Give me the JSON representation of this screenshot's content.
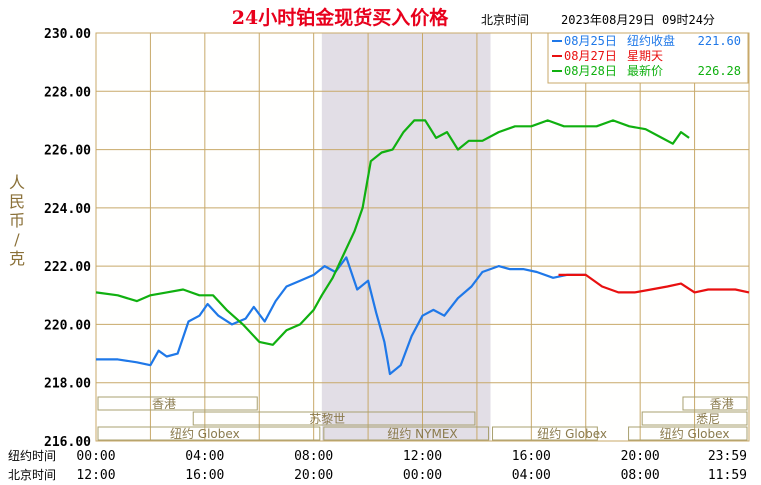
{
  "header": {
    "title": "24小时铂金现货买入价格",
    "location": "北京时间",
    "datetime": "2023年08月29日 09时24分"
  },
  "colors": {
    "background": "#fffffe",
    "grid": "#c8a96a",
    "axis_text": "#000000",
    "title": "#e8001c",
    "ylabel": "#8a7038",
    "series_aug25": "#1f78e8",
    "series_aug27": "#e81010",
    "series_aug28": "#10b010",
    "band_fill": "#e2dee6",
    "band_edge": "#d8d0c2",
    "session_box": "#a8a070",
    "session_text": "#8a7a4c",
    "legend_text_blue": "#1f78e8",
    "legend_text_red": "#e81010",
    "legend_text_green": "#10b010"
  },
  "y_axis_label": [
    "人",
    "民",
    "币",
    "/",
    "克"
  ],
  "x_axis": {
    "rows": [
      {
        "label": "纽约时间",
        "ticks": [
          "00:00",
          "04:00",
          "08:00",
          "12:00",
          "16:00",
          "20:00",
          "23:59"
        ]
      },
      {
        "label": "北京时间",
        "ticks": [
          "12:00",
          "16:00",
          "20:00",
          "00:00",
          "04:00",
          "08:00",
          "11:59"
        ]
      }
    ]
  },
  "legend": [
    {
      "date": "08月25日",
      "desc": "纽约收盘",
      "value": "221.60",
      "color_key": "series_aug25"
    },
    {
      "date": "08月27日",
      "desc": "星期天",
      "value": "",
      "color_key": "series_aug27"
    },
    {
      "date": "08月28日",
      "desc": "最新价",
      "value": "226.28",
      "color_key": "series_aug28"
    }
  ],
  "sessions": [
    {
      "name": "香港",
      "row": 1,
      "from": 0,
      "to": 6,
      "label_at": 2.5
    },
    {
      "name": "苏黎世",
      "row": 2,
      "from": 3.5,
      "to": 14,
      "label_at": 8.5
    },
    {
      "name": "纽约 Globex",
      "row": 3,
      "from": 0,
      "to": 8.3,
      "label_at": 4
    },
    {
      "name": "纽约 NYMEX",
      "row": 3,
      "from": 8.3,
      "to": 14.5,
      "label_at": 12
    },
    {
      "name": "纽约 Globex",
      "row": 3,
      "from": 14.5,
      "to": 18.5,
      "label_at": 17.5
    },
    {
      "name": "悉尼",
      "row": 2,
      "from": 20,
      "to": 24,
      "label_at": 22.5
    },
    {
      "name": "香港",
      "row": 1,
      "from": 21.5,
      "to": 24,
      "label_at": 23
    },
    {
      "name": "纽约 Globex",
      "row": 3,
      "from": 19.5,
      "to": 24,
      "label_at": 22
    }
  ],
  "chart_data": {
    "type": "line",
    "title": "24小时铂金现货买入价格",
    "ylabel": "人民币/克",
    "xlabel": "",
    "ylim": [
      216,
      230
    ],
    "yticks": [
      "230.00",
      "228.00",
      "226.00",
      "224.00",
      "222.00",
      "220.00",
      "218.00",
      "216.00"
    ],
    "xlim_hours_ny": [
      0,
      24
    ],
    "shaded_band_hours_ny": [
      8.3,
      14.5
    ],
    "grid": true,
    "series": [
      {
        "name": "08月25日",
        "color_key": "series_aug25",
        "x": [
          0,
          0.8,
          1.5,
          2.0,
          2.3,
          2.6,
          3.0,
          3.4,
          3.8,
          4.1,
          4.5,
          5.0,
          5.5,
          5.8,
          6.2,
          6.6,
          7.0,
          7.5,
          8.0,
          8.4,
          8.8,
          9.2,
          9.6,
          10.0,
          10.3,
          10.6,
          10.8,
          11.2,
          11.6,
          12.0,
          12.4,
          12.8,
          13.3,
          13.8,
          14.2,
          14.8,
          15.2,
          15.7,
          16.2,
          16.8,
          17.3,
          17.7,
          18.0
        ],
        "y": [
          218.8,
          218.8,
          218.7,
          218.6,
          219.1,
          218.9,
          219.0,
          220.1,
          220.3,
          220.7,
          220.3,
          220.0,
          220.2,
          220.6,
          220.1,
          220.8,
          221.3,
          221.5,
          221.7,
          222.0,
          221.8,
          222.3,
          221.2,
          221.5,
          220.4,
          219.4,
          218.3,
          218.6,
          219.6,
          220.3,
          220.5,
          220.3,
          220.9,
          221.3,
          221.8,
          222.0,
          221.9,
          221.9,
          221.8,
          221.6,
          221.7,
          221.7,
          221.7
        ]
      },
      {
        "name": "08月27日",
        "color_key": "series_aug27",
        "x": [
          17.0,
          17.5,
          18.0,
          18.6,
          19.2,
          19.8,
          20.4,
          21.0,
          21.5,
          22.0,
          22.5,
          23.0,
          23.5,
          24.0
        ],
        "y": [
          221.7,
          221.7,
          221.7,
          221.3,
          221.1,
          221.1,
          221.2,
          221.3,
          221.4,
          221.1,
          221.2,
          221.2,
          221.2,
          221.1
        ]
      },
      {
        "name": "08月28日",
        "color_key": "series_aug28",
        "x": [
          0,
          0.8,
          1.5,
          2.0,
          2.6,
          3.2,
          3.8,
          4.3,
          4.8,
          5.4,
          6.0,
          6.5,
          7.0,
          7.5,
          8.0,
          8.3,
          8.7,
          9.1,
          9.5,
          9.8,
          10.1,
          10.5,
          10.9,
          11.3,
          11.7,
          12.1,
          12.5,
          12.9,
          13.3,
          13.7,
          14.2,
          14.8,
          15.4,
          16.0,
          16.6,
          17.2,
          17.8,
          18.4,
          19.0,
          19.6,
          20.2,
          20.8,
          21.2,
          21.5,
          21.8
        ],
        "y": [
          221.1,
          221.0,
          220.8,
          221.0,
          221.1,
          221.2,
          221.0,
          221.0,
          220.5,
          220.0,
          219.4,
          219.3,
          219.8,
          220.0,
          220.5,
          221.0,
          221.6,
          222.4,
          223.2,
          224.0,
          225.6,
          225.9,
          226.0,
          226.6,
          227.0,
          227.0,
          226.4,
          226.6,
          226.0,
          226.3,
          226.3,
          226.6,
          226.8,
          226.8,
          227.0,
          226.8,
          226.8,
          226.8,
          227.0,
          226.8,
          226.7,
          226.4,
          226.2,
          226.6,
          226.4
        ]
      }
    ]
  }
}
